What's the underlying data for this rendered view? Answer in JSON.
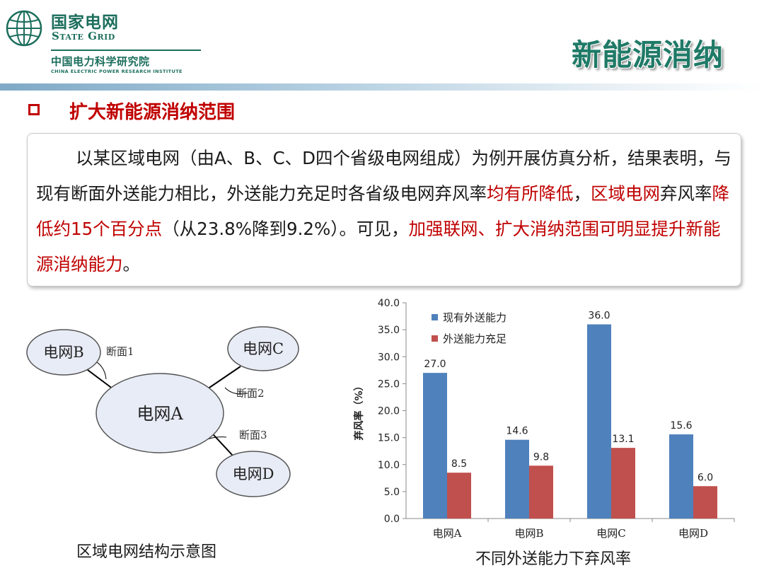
{
  "header": {
    "logo_name_cn": "国家电网",
    "logo_name_en": "State Grid",
    "institute_cn": "中国电力科学研究院",
    "institute_en": "CHINA ELECTRIC POWER RESEARCH INSTITUTE",
    "slide_title": "新能源消纳",
    "logo_color": "#1b6e5c"
  },
  "section": {
    "bullet_icon": "hollow-square-bullet",
    "title": "扩大新能源消纳范围",
    "accent_color": "#c00000"
  },
  "body": {
    "p1": "以某区域电网（由A、B、C、D四个省级电网组成）为例开展仿真分析，结果表明，与现有断面外送能力相比，外送能力充足时各省级电网弃风率",
    "h1": "均有所降低",
    "p2": "，",
    "h2": "区域电网",
    "p3": "弃风率",
    "h3": "降低约15个百分点",
    "p4": "（从23.8%降到9.2%）。可见，",
    "h4": "加强联网、扩大消纳范围可明显提升新能源消纳能力",
    "p5": "。"
  },
  "diagram": {
    "caption": "区域电网结构示意图",
    "nodes": {
      "a": "电网A",
      "b": "电网B",
      "c": "电网C",
      "d": "电网D"
    },
    "sections": {
      "s1": "断面1",
      "s2": "断面2",
      "s3": "断面3"
    }
  },
  "chart_data": {
    "type": "bar",
    "title": "不同外送能力下弃风率",
    "ylabel": "弃风率（%）",
    "xlabel": "",
    "categories": [
      "电网A",
      "电网B",
      "电网C",
      "电网D"
    ],
    "series": [
      {
        "name": "现有外送能力",
        "values": [
          27.0,
          14.6,
          36.0,
          15.6
        ],
        "color": "#4f81bd"
      },
      {
        "name": "外送能力充足",
        "values": [
          8.5,
          9.8,
          13.1,
          6.0
        ],
        "color": "#c0504d"
      }
    ],
    "ylim": [
      0,
      40
    ],
    "yticks": [
      "0.0",
      "5.0",
      "10.0",
      "15.0",
      "20.0",
      "25.0",
      "30.0",
      "35.0",
      "40.0"
    ],
    "grid": false,
    "legend": "top-left"
  }
}
